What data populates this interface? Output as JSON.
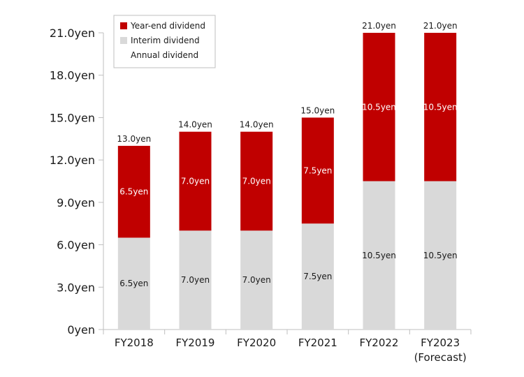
{
  "chart_data": {
    "type": "bar",
    "stacked": true,
    "categories": [
      "FY2018",
      "FY2019",
      "FY2020",
      "FY2021",
      "FY2022",
      "FY2023"
    ],
    "category_sublabels": [
      "",
      "",
      "",
      "",
      "",
      "(Forecast)"
    ],
    "highlight_category_index": 5,
    "series": [
      {
        "name": "Interim dividend",
        "color": "#d9d9d9",
        "label_color": "#1a1a1a",
        "values": [
          6.5,
          7.0,
          7.0,
          7.5,
          10.5,
          10.5
        ],
        "labels": [
          "6.5yen",
          "7.0yen",
          "7.0yen",
          "7.5yen",
          "10.5yen",
          "10.5yen"
        ]
      },
      {
        "name": "Year-end dividend",
        "color": "#c00000",
        "label_color": "#ffffff",
        "values": [
          6.5,
          7.0,
          7.0,
          7.5,
          10.5,
          10.5
        ],
        "labels": [
          "6.5yen",
          "7.0yen",
          "7.0yen",
          "7.5yen",
          "10.5yen",
          "10.5yen"
        ]
      }
    ],
    "totals": {
      "name": "Annual dividend",
      "values": [
        13.0,
        14.0,
        14.0,
        15.0,
        21.0,
        21.0
      ],
      "labels": [
        "13.0yen",
        "14.0yen",
        "14.0yen",
        "15.0yen",
        "21.0yen",
        "21.0yen"
      ]
    },
    "legend": {
      "position": "top-left",
      "order": [
        "Year-end dividend",
        "Interim dividend",
        "Annual dividend"
      ]
    },
    "ylim": [
      0,
      21
    ],
    "yticks": [
      0,
      3,
      6,
      9,
      12,
      15,
      18,
      21
    ],
    "ytick_labels": [
      "0yen",
      "3.0yen",
      "6.0yen",
      "9.0yen",
      "12.0yen",
      "15.0yen",
      "18.0yen",
      "21.0yen"
    ],
    "grid": false,
    "colors": {
      "highlight_text": "#c00000",
      "axis": "#bfbfbf"
    }
  }
}
